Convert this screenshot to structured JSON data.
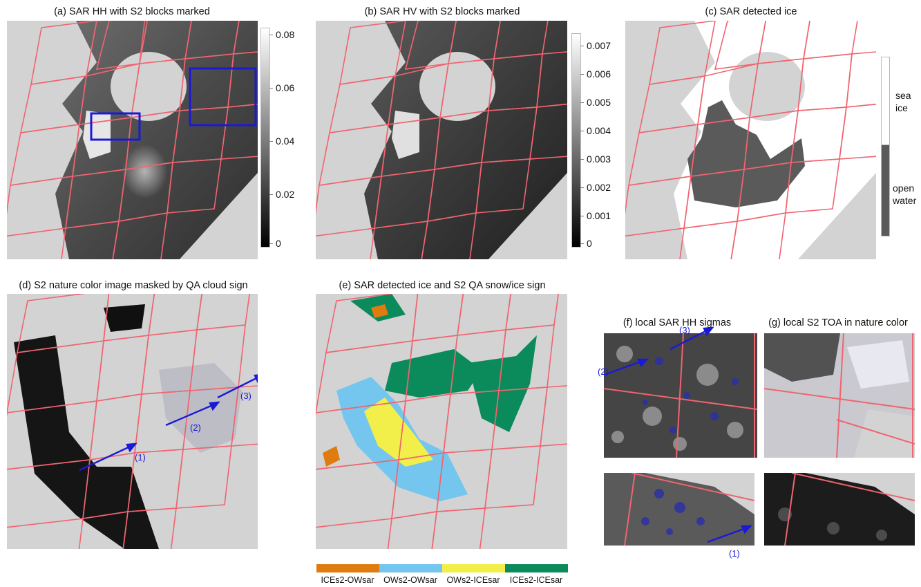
{
  "titles": {
    "a": "(a) SAR HH with S2 blocks marked",
    "b": "(b) SAR HV with S2 blocks marked",
    "c": "(c) SAR detected ice",
    "d": "(d) S2 nature color image masked by QA cloud sign",
    "e": "(e) SAR detected ice and S2 QA snow/ice sign",
    "f": "(f)  local SAR HH sigmas",
    "g": "(g)  local S2 TOA in nature color"
  },
  "colorbar_a": {
    "ticks": [
      "0.08",
      "0.06",
      "0.04",
      "0.02",
      "0"
    ]
  },
  "colorbar_b": {
    "ticks": [
      "0.007",
      "0.006",
      "0.005",
      "0.004",
      "0.003",
      "0.002",
      "0.001",
      "0"
    ]
  },
  "colorbar_c": {
    "sea_ice": "sea\nice",
    "sea_ice_1": "sea",
    "sea_ice_2": "ice",
    "open_water_1": "open",
    "open_water_2": "water",
    "ice_color": "#ffffff",
    "water_color": "#5a5a5a"
  },
  "annotations": {
    "d1": "(1)",
    "d2": "(2)",
    "d3": "(3)",
    "f1": "(1)",
    "f2": "(2)",
    "f3": "(3)"
  },
  "legend_e": {
    "items": [
      {
        "label": "ICEs2-OWsar",
        "color": "#e07b10"
      },
      {
        "label": "OWs2-OWsar",
        "color": "#74c6ee"
      },
      {
        "label": "OWs2-ICEsar",
        "color": "#f2ef4a"
      },
      {
        "label": "ICEs2-ICEsar",
        "color": "#0b8a5b"
      }
    ]
  },
  "colors": {
    "grid": "#f06470",
    "box": "#1a1ad6",
    "arrow": "#1a1ad6",
    "land": "#d3d3d3"
  }
}
